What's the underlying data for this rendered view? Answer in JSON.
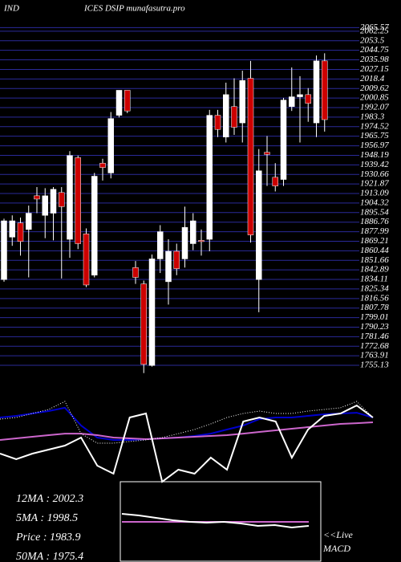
{
  "chart_data": [
    {
      "type": "candlestick",
      "title": [
        "IND",
        "ICES DSIP munafasutra.pro"
      ],
      "categories": [
        null,
        null,
        null,
        null,
        null,
        null,
        null,
        null,
        null,
        null,
        null,
        null,
        null,
        null,
        null,
        null,
        null,
        null,
        null,
        null,
        null,
        null,
        null,
        null,
        null,
        null,
        null,
        null,
        null,
        null,
        null,
        null,
        null,
        null,
        null,
        null,
        null,
        null,
        null,
        null
      ],
      "open": [
        1834,
        1873,
        1886,
        1880,
        1911,
        1893,
        1895,
        1914,
        1871,
        1946,
        1876,
        1838,
        1941,
        1932,
        1985,
        2008,
        1845,
        1830,
        1755,
        1853,
        1832,
        1860,
        1853,
        1867,
        1870,
        1871,
        1985,
        1965,
        1993,
        1978,
        2019,
        1834,
        1951,
        1928,
        1926,
        1993,
        2002,
        2004,
        1978,
        2035
      ],
      "high": [
        1890,
        1893,
        1891,
        1902,
        1919,
        1918,
        1919,
        1919,
        1952,
        1948,
        1881,
        1932,
        1945,
        1988,
        2008,
        2008,
        1851,
        1833,
        1857,
        1884,
        1871,
        1867,
        1901,
        1895,
        1880,
        1990,
        1990,
        2015,
        2019,
        2026,
        2035,
        1954,
        1966,
        1941,
        2001,
        2029,
        2021,
        2010,
        2040,
        2042
      ],
      "low": [
        1832,
        1865,
        1856,
        1836,
        1895,
        1872,
        1870,
        1835,
        1854,
        1862,
        1827,
        1836,
        1925,
        1927,
        1983,
        1987,
        1830,
        1748,
        1754,
        1840,
        1811,
        1838,
        1845,
        1861,
        1856,
        1860,
        1965,
        1960,
        1967,
        1960,
        1868,
        1804,
        1920,
        1915,
        1920,
        1989,
        1960,
        1979,
        1965,
        1970
      ],
      "close": [
        1888,
        1888,
        1869,
        1895,
        1908,
        1911,
        1917,
        1901,
        1948,
        1867,
        1829,
        1929,
        1937,
        1982,
        2008,
        1989,
        1836,
        1756,
        1853,
        1878,
        1860,
        1844,
        1882,
        1888,
        1869,
        1985,
        1972,
        2004,
        1974,
        2017,
        1875,
        1934,
        1949,
        1920,
        1999,
        2002,
        2004,
        1996,
        2035,
        1981
      ],
      "up_color": "#ffffff",
      "down_color": "#cc0000",
      "ylim": [
        1750,
        2067
      ],
      "yticks": [
        2065.57,
        2062.25,
        2053.5,
        2044.75,
        2035.98,
        2027.15,
        2018.4,
        2009.62,
        2000.85,
        1992.07,
        1983.3,
        1974.52,
        1965.75,
        1956.97,
        1948.19,
        1939.42,
        1930.66,
        1921.87,
        1913.09,
        1904.32,
        1895.54,
        1886.76,
        1877.99,
        1869.21,
        1860.44,
        1851.66,
        1842.89,
        1834.11,
        1825.34,
        1816.56,
        1807.78,
        1799.01,
        1790.23,
        1781.46,
        1772.68,
        1763.91,
        1755.13
      ],
      "grid": true,
      "grid_color": "#2a2a99",
      "annotations": [
        "12MA : 2002.3",
        "5MA : 1998.5",
        "Price  : 1983.9",
        "50MA : 1975.4"
      ]
    },
    {
      "type": "line",
      "ylim": [
        0,
        100
      ],
      "series": [
        {
          "color": "#0000cc",
          "style": "solid",
          "values": [
            69.2,
            70.8,
            73.1,
            75.4,
            78.5,
            61.5,
            50,
            47.7,
            47.7,
            48.5,
            49.2,
            50,
            51.5,
            53.8,
            57.7,
            61.5,
            67.7,
            69.2,
            69.2,
            70.8,
            72.3,
            73.1,
            73.8,
            69.2
          ]
        },
        {
          "color": "#cc66cc",
          "style": "solid",
          "values": [
            47.7,
            49.2,
            50.8,
            52.3,
            53.8,
            53.8,
            52.3,
            50,
            49.2,
            48.5,
            49.2,
            50,
            50.8,
            51.5,
            52.3,
            53.8,
            55.4,
            56.9,
            58.5,
            60,
            61.5,
            63.1,
            63.8,
            64.6
          ]
        },
        {
          "color": "#ffffff",
          "style": "dotted",
          "values": [
            67.7,
            69.2,
            73.1,
            76.9,
            84.6,
            53.8,
            44.6,
            44.6,
            46.2,
            47.7,
            50,
            53.8,
            57.7,
            63.1,
            69.2,
            73.1,
            75.4,
            73.1,
            73.1,
            75.4,
            76.9,
            78.5,
            84.6,
            69.2
          ]
        },
        {
          "color": "#ffffff",
          "style": "solid",
          "values": [
            34.6,
            29.2,
            34.6,
            38.5,
            42.3,
            50,
            23.1,
            15.4,
            69.2,
            73.1,
            7.7,
            19.2,
            15.4,
            30.8,
            19.2,
            65.4,
            69.2,
            65.4,
            30.8,
            57.7,
            70.8,
            73.1,
            80.8,
            69.2
          ]
        }
      ]
    },
    {
      "type": "line",
      "ylim": [
        0,
        100
      ],
      "annotations": [
        "<<Live",
        "MACD"
      ],
      "series": [
        {
          "color": "#cc66cc",
          "style": "solid",
          "values": [
            50,
            50,
            50,
            50,
            50,
            50,
            50,
            50,
            50,
            50,
            50,
            50
          ]
        },
        {
          "color": "#ffffff",
          "style": "solid",
          "values": [
            60,
            58,
            55,
            52,
            50,
            49,
            50,
            48,
            45,
            46,
            43,
            45
          ]
        }
      ]
    }
  ]
}
